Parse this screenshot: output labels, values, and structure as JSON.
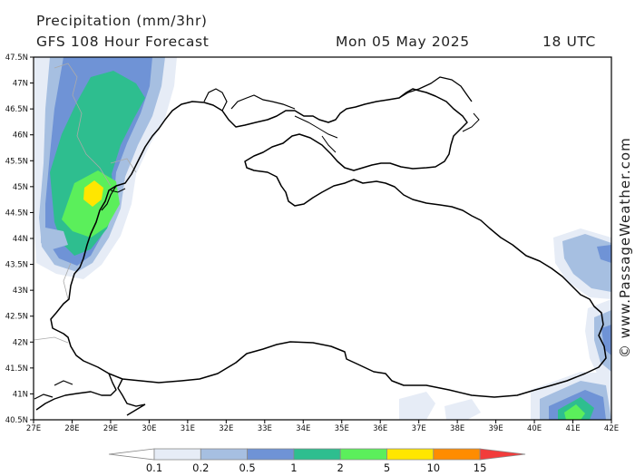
{
  "header": {
    "title": "Precipitation (mm/3hr)",
    "subtitle": "GFS 108 Hour Forecast",
    "date": "Mon 05 May 2025",
    "time": "18 UTC"
  },
  "credit": "© www.PassageWeather.com",
  "lat_labels": [
    "47.5N",
    "47N",
    "46.5N",
    "46N",
    "45.5N",
    "45N",
    "44.5N",
    "44N",
    "43.5N",
    "43N",
    "42.5N",
    "42N",
    "41.5N",
    "41N",
    "40.5N"
  ],
  "lon_labels": [
    "27E",
    "28E",
    "29E",
    "30E",
    "31E",
    "32E",
    "33E",
    "34E",
    "35E",
    "36E",
    "37E",
    "38E",
    "39E",
    "40E",
    "41E",
    "42E"
  ],
  "legend": {
    "labels": [
      "0.1",
      "0.2",
      "0.5",
      "1",
      "2",
      "5",
      "10",
      "15"
    ],
    "colors": [
      "#ffffff",
      "#e6ecf6",
      "#a6bfe1",
      "#6f93d6",
      "#2ebe8f",
      "#5bef5b",
      "#ffe600",
      "#ff8c00",
      "#f23c3c"
    ]
  }
}
